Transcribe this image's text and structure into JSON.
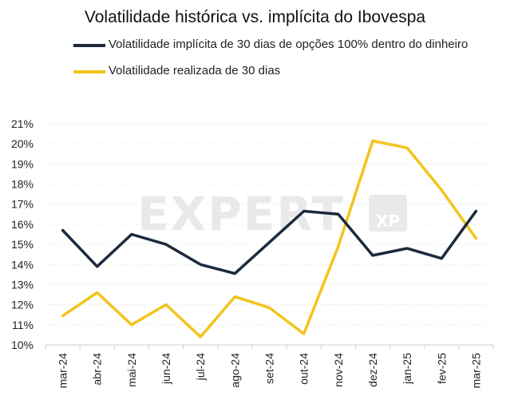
{
  "chart_data": {
    "type": "line",
    "title": "Volatilidade histórica vs. implícita do Ibovespa",
    "categories": [
      "mar-24",
      "abr-24",
      "mai-24",
      "jun-24",
      "jul-24",
      "ago-24",
      "set-24",
      "out-24",
      "nov-24",
      "dez-24",
      "jan-25",
      "fev-25",
      "mar-25"
    ],
    "series": [
      {
        "name": "Volatilidade implícita de 30 dias de opções 100% dentro do dinheiro",
        "color": "#1c2a3c",
        "values": [
          15.7,
          13.9,
          15.5,
          15.0,
          14.0,
          13.55,
          15.1,
          16.65,
          16.5,
          14.45,
          14.8,
          14.3,
          16.65
        ]
      },
      {
        "name": "Volatilidade realizada de 30 dias",
        "color": "#f2c41c",
        "values": [
          11.45,
          12.6,
          11.0,
          12.0,
          10.4,
          12.4,
          11.85,
          10.55,
          14.9,
          20.15,
          19.8,
          17.7,
          15.3
        ]
      }
    ],
    "ylim": [
      10,
      21
    ],
    "yticks": [
      "10%",
      "11%",
      "12%",
      "13%",
      "14%",
      "15%",
      "16%",
      "17%",
      "18%",
      "19%",
      "20%",
      "21%"
    ],
    "xlabel": "",
    "ylabel": "",
    "legend_position": "top",
    "watermark": {
      "main": "EXPERT",
      "badge": "XP"
    }
  }
}
